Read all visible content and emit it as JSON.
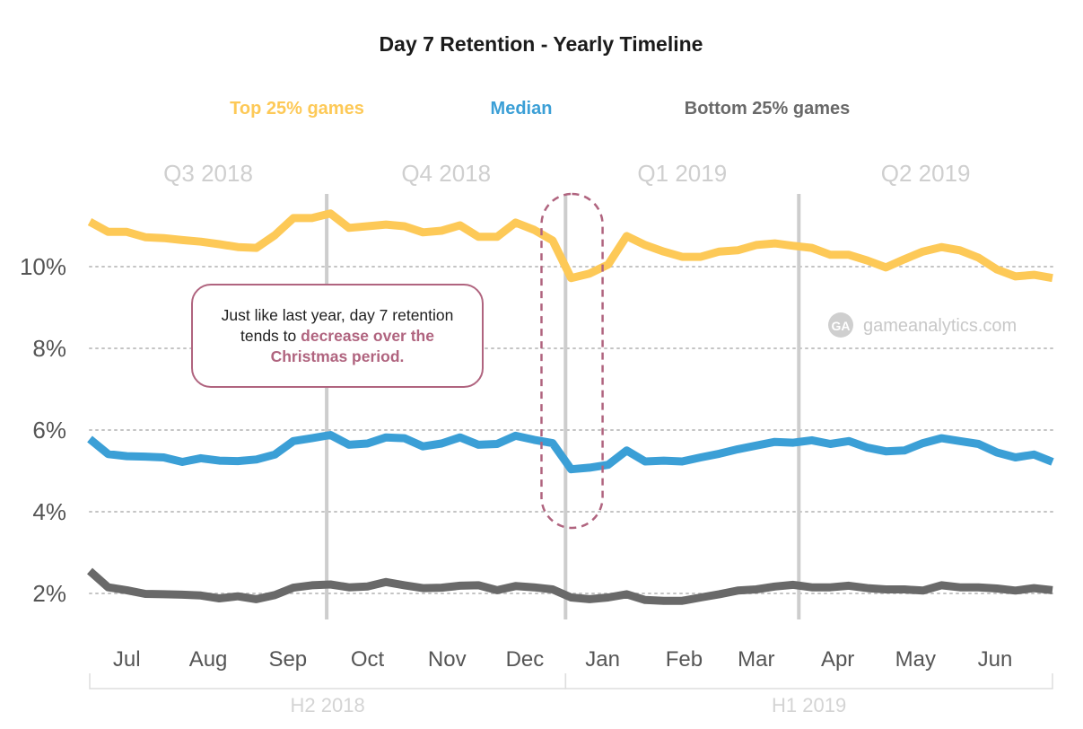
{
  "chart_data": {
    "type": "line",
    "title": "Day 7 Retention - Yearly Timeline",
    "xlabel": "",
    "ylabel": "",
    "ylim": [
      0.8,
      11.7
    ],
    "y_ticks": [
      {
        "value": 2,
        "label": "2%"
      },
      {
        "value": 4,
        "label": "4%"
      },
      {
        "value": 6,
        "label": "6%"
      },
      {
        "value": 8,
        "label": "8%"
      },
      {
        "value": 10,
        "label": "10%"
      }
    ],
    "grid": "horizontal dotted at y ticks",
    "x_unit": "week (Jul 2018 - Jun 2019)",
    "month_labels": [
      {
        "label": "Jul",
        "week": 2
      },
      {
        "label": "Aug",
        "week": 6.4
      },
      {
        "label": "Sep",
        "week": 10.7
      },
      {
        "label": "Oct",
        "week": 15
      },
      {
        "label": "Nov",
        "week": 19.3
      },
      {
        "label": "Dec",
        "week": 23.5
      },
      {
        "label": "Jan",
        "week": 27.7
      },
      {
        "label": "Feb",
        "week": 32.1
      },
      {
        "label": "Mar",
        "week": 36
      },
      {
        "label": "Apr",
        "week": 40.4
      },
      {
        "label": "May",
        "week": 44.6
      },
      {
        "label": "Jun",
        "week": 48.9
      }
    ],
    "quarters": [
      {
        "label": "Q3 2018",
        "start_week": 0,
        "end_week": 12.8
      },
      {
        "label": "Q4 2018",
        "start_week": 12.8,
        "end_week": 25.7
      },
      {
        "label": "Q1 2019",
        "start_week": 25.7,
        "end_week": 38.3
      },
      {
        "label": "Q2 2019",
        "start_week": 38.3,
        "end_week": 52
      }
    ],
    "quarter_dividers_week": [
      12.8,
      25.7,
      38.3
    ],
    "halves": [
      {
        "label": "H2 2018",
        "start_week": 0,
        "end_week": 25.7
      },
      {
        "label": "H1 2019",
        "start_week": 25.7,
        "end_week": 52
      }
    ],
    "legend_position": "top",
    "series": [
      {
        "name": "Top 25% games",
        "color": "#fdc957",
        "values": [
          11.1,
          10.85,
          10.85,
          10.72,
          10.7,
          10.65,
          10.61,
          10.55,
          10.48,
          10.46,
          10.77,
          11.19,
          11.19,
          11.3,
          10.95,
          10.99,
          11.03,
          10.99,
          10.84,
          10.88,
          11.01,
          10.73,
          10.73,
          11.08,
          10.9,
          10.64,
          9.72,
          9.83,
          10.05,
          10.75,
          10.53,
          10.37,
          10.24,
          10.24,
          10.37,
          10.4,
          10.53,
          10.57,
          10.51,
          10.46,
          10.29,
          10.29,
          10.15,
          9.98,
          10.18,
          10.37,
          10.48,
          10.4,
          10.22,
          9.93,
          9.76,
          9.8,
          9.72
        ]
      },
      {
        "name": "Median",
        "color": "#3b9fd6",
        "values": [
          5.78,
          5.41,
          5.36,
          5.35,
          5.33,
          5.22,
          5.31,
          5.25,
          5.24,
          5.28,
          5.4,
          5.73,
          5.8,
          5.88,
          5.64,
          5.67,
          5.82,
          5.8,
          5.6,
          5.67,
          5.82,
          5.64,
          5.66,
          5.86,
          5.76,
          5.68,
          5.04,
          5.08,
          5.15,
          5.5,
          5.23,
          5.25,
          5.23,
          5.33,
          5.42,
          5.53,
          5.62,
          5.71,
          5.69,
          5.75,
          5.66,
          5.73,
          5.57,
          5.48,
          5.5,
          5.68,
          5.8,
          5.73,
          5.66,
          5.45,
          5.33,
          5.4,
          5.22
        ]
      },
      {
        "name": "Bottom 25% games",
        "color": "#696969",
        "values": [
          2.55,
          2.15,
          2.08,
          1.99,
          1.98,
          1.97,
          1.95,
          1.88,
          1.93,
          1.86,
          1.96,
          2.14,
          2.2,
          2.22,
          2.15,
          2.17,
          2.28,
          2.2,
          2.13,
          2.14,
          2.19,
          2.2,
          2.08,
          2.18,
          2.15,
          2.1,
          1.9,
          1.86,
          1.9,
          1.98,
          1.84,
          1.82,
          1.82,
          1.9,
          1.98,
          2.07,
          2.1,
          2.17,
          2.21,
          2.15,
          2.15,
          2.19,
          2.13,
          2.1,
          2.1,
          2.07,
          2.2,
          2.15,
          2.15,
          2.12,
          2.07,
          2.13,
          2.08
        ]
      }
    ],
    "annotation": {
      "text_plain": "Just like last year, day 7 retention tends to ",
      "text_highlight": "decrease over the Christmas period.",
      "highlight_color": "#b0647f",
      "highlighted_range_weeks": [
        24.4,
        27.7
      ]
    },
    "watermark": "gameanalytics.com"
  }
}
